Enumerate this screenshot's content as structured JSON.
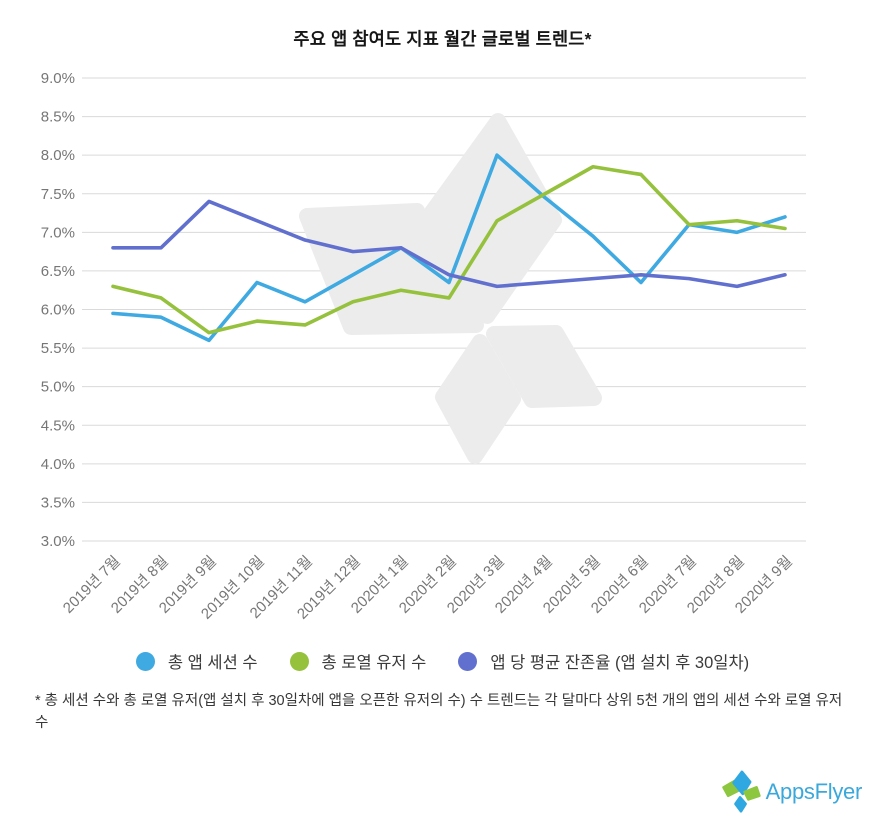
{
  "chart_data": {
    "type": "line",
    "title": "주요 앱 참여도 지표 월간 글로벌 트렌드*",
    "categories": [
      "2019년 7월",
      "2019년 8월",
      "2019년 9월",
      "2019년 10월",
      "2019년 11월",
      "2019년 12월",
      "2020년 1월",
      "2020년 2월",
      "2020년 3월",
      "2020년 4월",
      "2020년 5월",
      "2020년 6월",
      "2020년 7월",
      "2020년 8월",
      "2020년 9월"
    ],
    "series": [
      {
        "name": "총 앱 세션 수",
        "color": "#3FA9E1",
        "values": [
          5.95,
          5.9,
          5.6,
          6.35,
          6.1,
          6.45,
          6.8,
          6.35,
          8.0,
          7.45,
          6.95,
          6.35,
          7.1,
          7.0,
          7.2
        ]
      },
      {
        "name": "총 로열 유저 수",
        "color": "#95C13D",
        "values": [
          6.3,
          6.15,
          5.7,
          5.85,
          5.8,
          6.1,
          6.25,
          6.15,
          7.15,
          7.5,
          7.85,
          7.75,
          7.1,
          7.15,
          7.05
        ]
      },
      {
        "name": "앱 당 평균 잔존율 (앱 설치 후 30일차)",
        "color": "#6170CE",
        "values": [
          6.8,
          6.8,
          7.4,
          7.15,
          6.9,
          6.75,
          6.8,
          6.45,
          6.3,
          6.35,
          6.4,
          6.45,
          6.4,
          6.3,
          6.45
        ]
      }
    ],
    "ylim": [
      3.0,
      9.0
    ],
    "ytick_step": 0.5,
    "y_ticks": [
      {
        "value": 9.0,
        "label": "9.0%"
      },
      {
        "value": 8.5,
        "label": "8.5%"
      },
      {
        "value": 8.0,
        "label": "8.0%"
      },
      {
        "value": 7.5,
        "label": "7.5%"
      },
      {
        "value": 7.0,
        "label": "7.0%"
      },
      {
        "value": 6.5,
        "label": "6.5%"
      },
      {
        "value": 6.0,
        "label": "6.0%"
      },
      {
        "value": 5.5,
        "label": "5.5%"
      },
      {
        "value": 5.0,
        "label": "5.0%"
      },
      {
        "value": 4.5,
        "label": "4.5%"
      },
      {
        "value": 4.0,
        "label": "4.0%"
      },
      {
        "value": 3.5,
        "label": "3.5%"
      },
      {
        "value": 3.0,
        "label": "3.0%"
      }
    ],
    "grid": "horizontal",
    "legend_position": "bottom"
  },
  "footnote": "* 총 세션 수와 총 로열 유저(앱 설치 후 30일차에 앱을 오픈한 유저의 수) 수 트렌드는 각 달마다 상위 5천 개의 앱의 세션 수와 로열 유저 수",
  "logo": {
    "text": "AppsFlyer",
    "brand_color": "#3BA8DB"
  }
}
